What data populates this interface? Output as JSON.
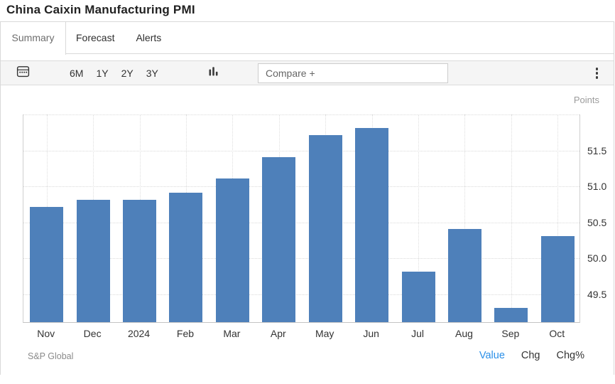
{
  "header": {
    "title": "China Caixin Manufacturing PMI"
  },
  "tabs": [
    {
      "label": "Summary",
      "active": true
    },
    {
      "label": "Forecast",
      "active": false
    },
    {
      "label": "Alerts",
      "active": false
    }
  ],
  "toolbar": {
    "calendar_icon": "calendar-icon",
    "ranges": [
      "6M",
      "1Y",
      "2Y",
      "3Y"
    ],
    "chart_type_icon": "bar-chart-icon",
    "compare_placeholder": "Compare +",
    "menu_icon": "kebab-menu-icon"
  },
  "chart_data": {
    "type": "bar",
    "title": "China Caixin Manufacturing PMI",
    "categories": [
      "Nov",
      "Dec",
      "2024",
      "Feb",
      "Mar",
      "Apr",
      "May",
      "Jun",
      "Jul",
      "Aug",
      "Sep",
      "Oct"
    ],
    "values": [
      50.7,
      50.8,
      50.8,
      50.9,
      51.1,
      51.4,
      51.7,
      51.8,
      49.8,
      50.4,
      49.3,
      50.3
    ],
    "xlabel": "",
    "ylabel": "Points",
    "ylim": [
      49.1,
      52.0
    ],
    "yticks": [
      49.5,
      50.0,
      50.5,
      51.0,
      51.5
    ],
    "ytick_format_decimals": 1,
    "grid": true,
    "gridline_style": "dotted",
    "legend_position": "none",
    "bar_color": "#4e80ba"
  },
  "footer": {
    "source": "S&P Global",
    "views": [
      {
        "label": "Value",
        "active": true
      },
      {
        "label": "Chg",
        "active": false
      },
      {
        "label": "Chg%",
        "active": false
      }
    ]
  },
  "colors": {
    "bar": "#4e80ba",
    "active_view_link": "#2a8fe8",
    "toolbar_bg": "#f5f5f5",
    "border": "#d9d9d9"
  }
}
